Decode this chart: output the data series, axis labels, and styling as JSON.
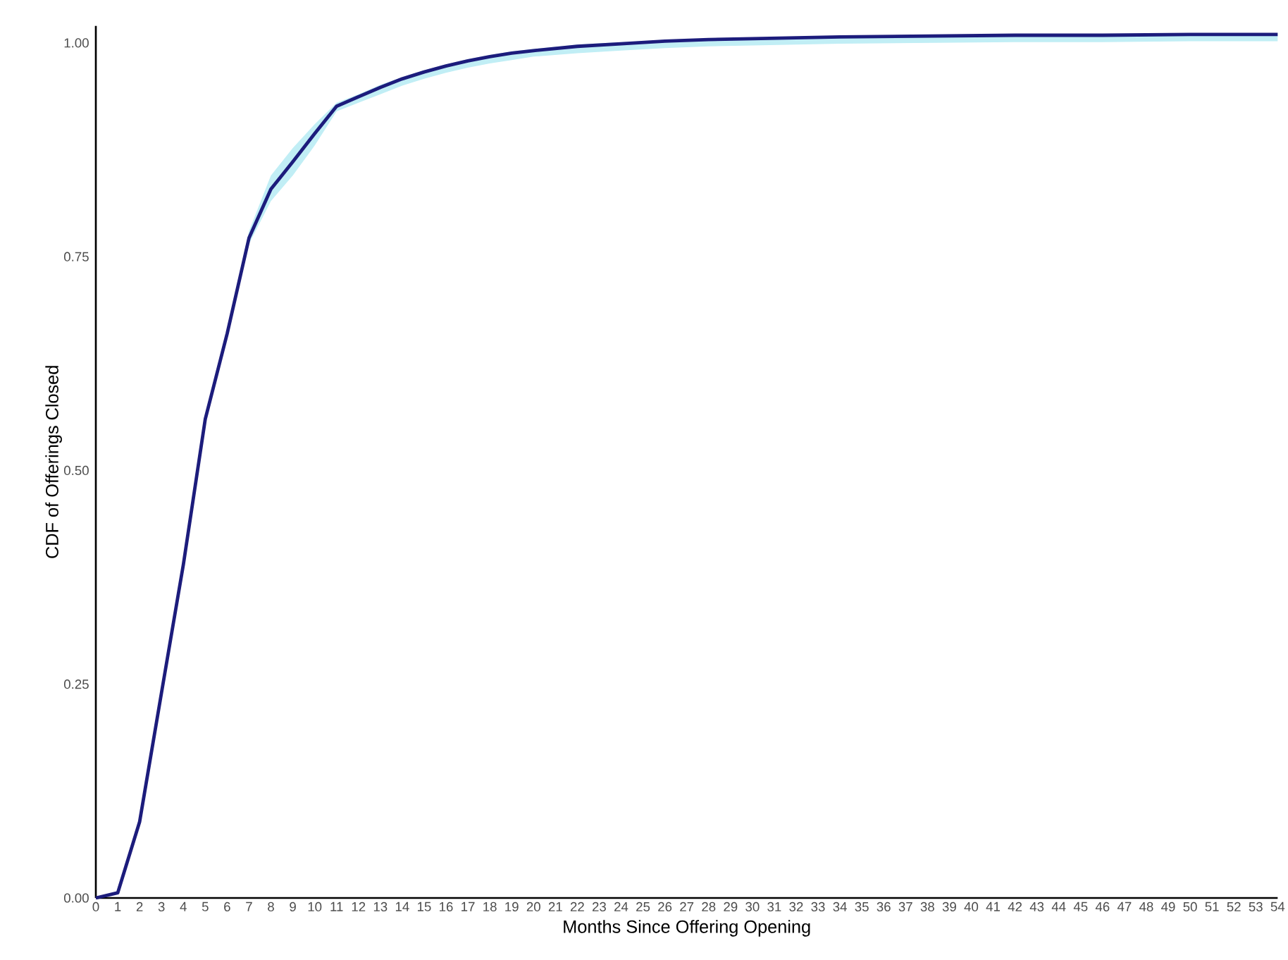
{
  "chart_data": {
    "type": "line",
    "xlabel": "Months Since Offering Opening",
    "ylabel": "CDF of Offerings Closed",
    "xlim": [
      0,
      54
    ],
    "ylim": [
      0,
      1.02
    ],
    "xticks": [
      0,
      1,
      2,
      3,
      4,
      5,
      6,
      7,
      8,
      9,
      10,
      11,
      12,
      13,
      14,
      15,
      16,
      17,
      18,
      19,
      20,
      21,
      22,
      23,
      24,
      25,
      26,
      27,
      28,
      29,
      30,
      31,
      32,
      33,
      34,
      35,
      36,
      37,
      38,
      39,
      40,
      41,
      42,
      43,
      44,
      45,
      46,
      47,
      48,
      49,
      50,
      51,
      52,
      53,
      54
    ],
    "yticks": [
      {
        "value": 0,
        "label": "0.00"
      },
      {
        "value": 0.25,
        "label": "0.25"
      },
      {
        "value": 0.5,
        "label": "0.50"
      },
      {
        "value": 0.75,
        "label": "0.75"
      },
      {
        "value": 1,
        "label": "1.00"
      }
    ],
    "grid": false,
    "marker": "none",
    "line_style": "solid",
    "series": [
      {
        "color": "#1c1c7c",
        "x": [
          0,
          1,
          2,
          3,
          4,
          5,
          6,
          7,
          8,
          9,
          10,
          11,
          12,
          13,
          14,
          15,
          16,
          17,
          18,
          19,
          20,
          22,
          24,
          26,
          28,
          30,
          34,
          38,
          42,
          46,
          50,
          54
        ],
        "values": [
          0,
          0.006,
          0.089,
          0.24,
          0.39,
          0.56,
          0.66,
          0.772,
          0.829,
          0.861,
          0.894,
          0.926,
          0.937,
          0.948,
          0.958,
          0.966,
          0.973,
          0.979,
          0.984,
          0.988,
          0.991,
          0.996,
          0.999,
          1.002,
          1.004,
          1.005,
          1.007,
          1.008,
          1.009,
          1.009,
          1.01,
          1.01
        ],
        "lower": [
          0,
          0.004,
          0.085,
          0.235,
          0.385,
          0.555,
          0.655,
          0.765,
          0.815,
          0.845,
          0.88,
          0.92,
          0.93,
          0.94,
          0.95,
          0.958,
          0.965,
          0.971,
          0.976,
          0.98,
          0.984,
          0.988,
          0.991,
          0.994,
          0.996,
          0.997,
          0.999,
          1.0,
          1.001,
          1.001,
          1.002,
          1.002
        ],
        "upper": [
          0,
          0.008,
          0.093,
          0.245,
          0.395,
          0.565,
          0.665,
          0.78,
          0.845,
          0.877,
          0.905,
          0.93,
          0.94,
          0.951,
          0.96,
          0.968,
          0.975,
          0.981,
          0.986,
          0.99,
          0.993,
          0.998,
          1.001,
          1.003,
          1.005,
          1.006,
          1.008,
          1.009,
          1.01,
          1.01,
          1.011,
          1.011
        ]
      }
    ]
  }
}
